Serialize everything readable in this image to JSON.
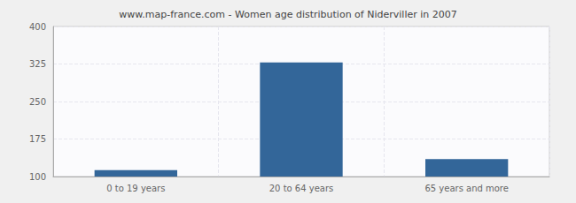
{
  "chart_data": {
    "type": "bar",
    "title": "www.map-france.com - Women age distribution of Niderviller in 2007",
    "categories": [
      "0 to 19 years",
      "20 to 64 years",
      "65 years and more"
    ],
    "values": [
      113,
      328,
      135
    ],
    "color": "#336699",
    "ylim": [
      100,
      400
    ],
    "yticks": [
      100,
      175,
      250,
      325,
      400
    ],
    "grid": true
  }
}
